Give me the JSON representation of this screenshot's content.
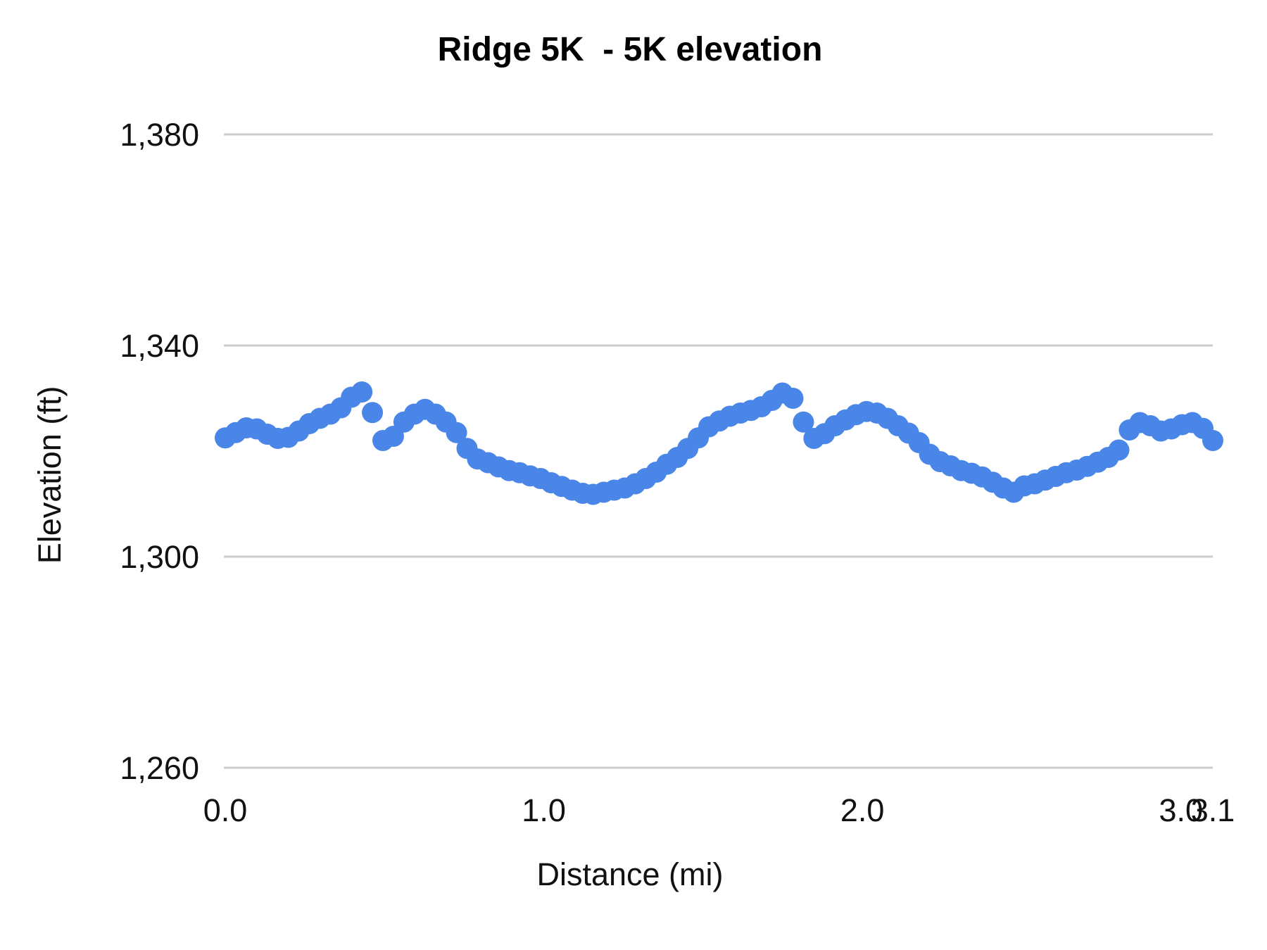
{
  "chart_data": {
    "type": "scatter",
    "title": "Ridge 5K  - 5K elevation",
    "xlabel": "Distance (mi)",
    "ylabel": "Elevation (ft)",
    "xlim": [
      0,
      3.1
    ],
    "ylim": [
      1260,
      1380
    ],
    "grid": "horizontal-only",
    "legend": "none",
    "background": "#ffffff",
    "x_ticks": [
      {
        "value": 0,
        "label": "0.0"
      },
      {
        "value": 1,
        "label": "1.0"
      },
      {
        "value": 2,
        "label": "2.0"
      },
      {
        "value": 3,
        "label": "3.0"
      },
      {
        "value": 3.1,
        "label": "3.1"
      }
    ],
    "y_ticks": [
      {
        "value": 1260,
        "label": "1,260"
      },
      {
        "value": 1300,
        "label": "1,300"
      },
      {
        "value": 1340,
        "label": "1,340"
      },
      {
        "value": 1380,
        "label": "1,380"
      }
    ],
    "series": [
      {
        "name": "5K elevation",
        "color": "#4a86e8",
        "marker": "circle",
        "marker_radius_px": 15,
        "points": [
          [
            0.0,
            1322.5
          ],
          [
            0.033,
            1323.5
          ],
          [
            0.066,
            1324.4
          ],
          [
            0.099,
            1324.2
          ],
          [
            0.132,
            1323.2
          ],
          [
            0.165,
            1322.4
          ],
          [
            0.198,
            1322.6
          ],
          [
            0.231,
            1323.8
          ],
          [
            0.264,
            1325.2
          ],
          [
            0.297,
            1326.2
          ],
          [
            0.33,
            1327.0
          ],
          [
            0.363,
            1328.2
          ],
          [
            0.396,
            1330.2
          ],
          [
            0.429,
            1331.2
          ],
          [
            0.462,
            1327.3
          ],
          [
            0.495,
            1322.0
          ],
          [
            0.528,
            1322.8
          ],
          [
            0.561,
            1325.5
          ],
          [
            0.594,
            1327.0
          ],
          [
            0.627,
            1327.9
          ],
          [
            0.66,
            1327.0
          ],
          [
            0.693,
            1325.5
          ],
          [
            0.726,
            1323.5
          ],
          [
            0.759,
            1320.5
          ],
          [
            0.792,
            1318.5
          ],
          [
            0.825,
            1317.8
          ],
          [
            0.858,
            1317.0
          ],
          [
            0.891,
            1316.3
          ],
          [
            0.924,
            1315.9
          ],
          [
            0.957,
            1315.3
          ],
          [
            0.99,
            1314.8
          ],
          [
            1.023,
            1314.0
          ],
          [
            1.056,
            1313.3
          ],
          [
            1.089,
            1312.6
          ],
          [
            1.122,
            1312.0
          ],
          [
            1.155,
            1311.8
          ],
          [
            1.188,
            1312.2
          ],
          [
            1.221,
            1312.6
          ],
          [
            1.254,
            1313.0
          ],
          [
            1.287,
            1313.8
          ],
          [
            1.32,
            1314.8
          ],
          [
            1.353,
            1316.0
          ],
          [
            1.386,
            1317.5
          ],
          [
            1.419,
            1318.8
          ],
          [
            1.452,
            1320.5
          ],
          [
            1.485,
            1322.5
          ],
          [
            1.518,
            1324.6
          ],
          [
            1.551,
            1325.7
          ],
          [
            1.584,
            1326.6
          ],
          [
            1.617,
            1327.2
          ],
          [
            1.65,
            1327.7
          ],
          [
            1.683,
            1328.4
          ],
          [
            1.716,
            1329.6
          ],
          [
            1.749,
            1331.0
          ],
          [
            1.782,
            1330.0
          ],
          [
            1.815,
            1325.5
          ],
          [
            1.848,
            1322.4
          ],
          [
            1.881,
            1323.3
          ],
          [
            1.914,
            1324.8
          ],
          [
            1.947,
            1325.9
          ],
          [
            1.98,
            1326.9
          ],
          [
            2.013,
            1327.5
          ],
          [
            2.046,
            1327.2
          ],
          [
            2.079,
            1326.2
          ],
          [
            2.112,
            1324.8
          ],
          [
            2.145,
            1323.4
          ],
          [
            2.178,
            1321.6
          ],
          [
            2.211,
            1319.4
          ],
          [
            2.244,
            1318.0
          ],
          [
            2.277,
            1317.2
          ],
          [
            2.31,
            1316.3
          ],
          [
            2.343,
            1315.8
          ],
          [
            2.376,
            1315.1
          ],
          [
            2.409,
            1314.1
          ],
          [
            2.442,
            1313.0
          ],
          [
            2.475,
            1312.2
          ],
          [
            2.508,
            1313.4
          ],
          [
            2.541,
            1313.8
          ],
          [
            2.574,
            1314.5
          ],
          [
            2.607,
            1315.2
          ],
          [
            2.64,
            1315.9
          ],
          [
            2.673,
            1316.4
          ],
          [
            2.706,
            1317.1
          ],
          [
            2.739,
            1317.9
          ],
          [
            2.772,
            1318.8
          ],
          [
            2.805,
            1320.2
          ],
          [
            2.838,
            1324.0
          ],
          [
            2.871,
            1325.4
          ],
          [
            2.904,
            1324.8
          ],
          [
            2.937,
            1323.8
          ],
          [
            2.97,
            1324.2
          ],
          [
            3.003,
            1325.0
          ],
          [
            3.036,
            1325.4
          ],
          [
            3.069,
            1324.3
          ],
          [
            3.1,
            1322.0
          ]
        ]
      }
    ],
    "colors": {
      "series_blue": "#4a86e8",
      "gridline_gray": "#cccccc",
      "text_black": "#111111"
    }
  }
}
